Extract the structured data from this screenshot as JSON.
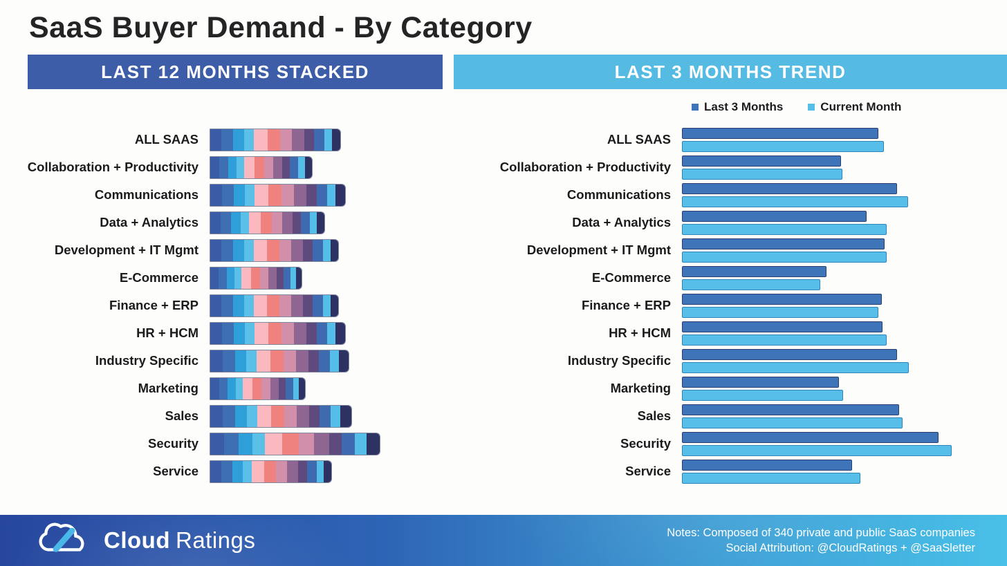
{
  "title": "SaaS Buyer Demand - By Category",
  "panels": {
    "left": {
      "header": "LAST 12 MONTHS STACKED",
      "header_color": "#3D5DA8"
    },
    "right": {
      "header": "LAST 3 MONTHS TREND",
      "header_color": "#56BBE3"
    }
  },
  "legend": [
    {
      "label": "Last 3 Months",
      "color": "#3E74B8"
    },
    {
      "label": "Current Month",
      "color": "#56BEE8"
    }
  ],
  "footer": {
    "brand_bold": "Cloud",
    "brand_regular": "Ratings",
    "note_line1": "Notes: Composed of 340 private and public SaaS companies",
    "note_line2": "Social Attribution: @CloudRatings + @SaaSletter"
  },
  "chart_data": [
    {
      "type": "bar",
      "variant": "stacked-horizontal",
      "title": "LAST 12 MONTHS STACKED",
      "value_units": "relative length (chart shows no numeric axis)",
      "categories": [
        "ALL SAAS",
        "Collaboration + Productivity",
        "Communications",
        "Data + Analytics",
        "Development + IT Mgmt",
        "E-Commerce",
        "Finance + ERP",
        "HR + HCM",
        "Industry Specific",
        "Marketing",
        "Sales",
        "Security",
        "Service"
      ],
      "month_colors": [
        "#3A5CA6",
        "#3E6FB3",
        "#2E9FD8",
        "#5BC0E8",
        "#FBB8BE",
        "#EF827F",
        "#D18FA9",
        "#8F6691",
        "#5F4A7E",
        "#3E6BB0",
        "#55BEE8",
        "#2D3263"
      ],
      "segments": [
        [
          16,
          17,
          16,
          14,
          20,
          18,
          17,
          18,
          14,
          15,
          11,
          12
        ],
        [
          13,
          13,
          12,
          11,
          15,
          14,
          13,
          13,
          11,
          12,
          10,
          10
        ],
        [
          17,
          17,
          16,
          14,
          20,
          19,
          18,
          18,
          15,
          15,
          12,
          14
        ],
        [
          15,
          15,
          14,
          12,
          17,
          16,
          15,
          15,
          12,
          13,
          10,
          11
        ],
        [
          16,
          17,
          16,
          14,
          19,
          18,
          17,
          17,
          14,
          15,
          11,
          11
        ],
        [
          12,
          12,
          11,
          10,
          14,
          13,
          12,
          12,
          10,
          10,
          8,
          8
        ],
        [
          16,
          17,
          16,
          14,
          19,
          18,
          17,
          17,
          14,
          15,
          11,
          11
        ],
        [
          17,
          17,
          16,
          14,
          20,
          19,
          18,
          18,
          15,
          15,
          12,
          14
        ],
        [
          18,
          18,
          16,
          15,
          20,
          19,
          18,
          18,
          15,
          16,
          13,
          14
        ],
        [
          13,
          12,
          12,
          10,
          14,
          13,
          13,
          12,
          10,
          11,
          8,
          9
        ],
        [
          18,
          18,
          17,
          15,
          20,
          19,
          18,
          18,
          15,
          16,
          14,
          16
        ],
        [
          20,
          21,
          20,
          18,
          25,
          24,
          22,
          22,
          18,
          19,
          17,
          19
        ],
        [
          16,
          16,
          15,
          13,
          18,
          17,
          16,
          16,
          13,
          14,
          10,
          11
        ]
      ],
      "totals": [
        188,
        147,
        195,
        165,
        185,
        132,
        185,
        195,
        200,
        137,
        204,
        245,
        175
      ],
      "xlim": [
        0,
        300
      ],
      "grid": false,
      "legend_position": "none"
    },
    {
      "type": "bar",
      "variant": "grouped-horizontal",
      "title": "LAST 3 MONTHS TREND",
      "value_units": "relative length (chart shows no numeric axis)",
      "categories": [
        "ALL SAAS",
        "Collaboration + Productivity",
        "Communications",
        "Data + Analytics",
        "Development + IT Mgmt",
        "E-Commerce",
        "Finance + ERP",
        "HR + HCM",
        "Industry Specific",
        "Marketing",
        "Sales",
        "Security",
        "Service"
      ],
      "series": [
        {
          "name": "Last 3 Months",
          "color": "#3E74B8",
          "values": [
            284,
            230,
            311,
            267,
            293,
            209,
            289,
            290,
            311,
            227,
            314,
            371,
            246
          ]
        },
        {
          "name": "Current Month",
          "color": "#56BEE8",
          "values": [
            292,
            232,
            327,
            296,
            296,
            200,
            284,
            296,
            328,
            233,
            319,
            390,
            258
          ]
        }
      ],
      "xlim": [
        0,
        440
      ],
      "grid": false,
      "legend_position": "top-right"
    }
  ]
}
